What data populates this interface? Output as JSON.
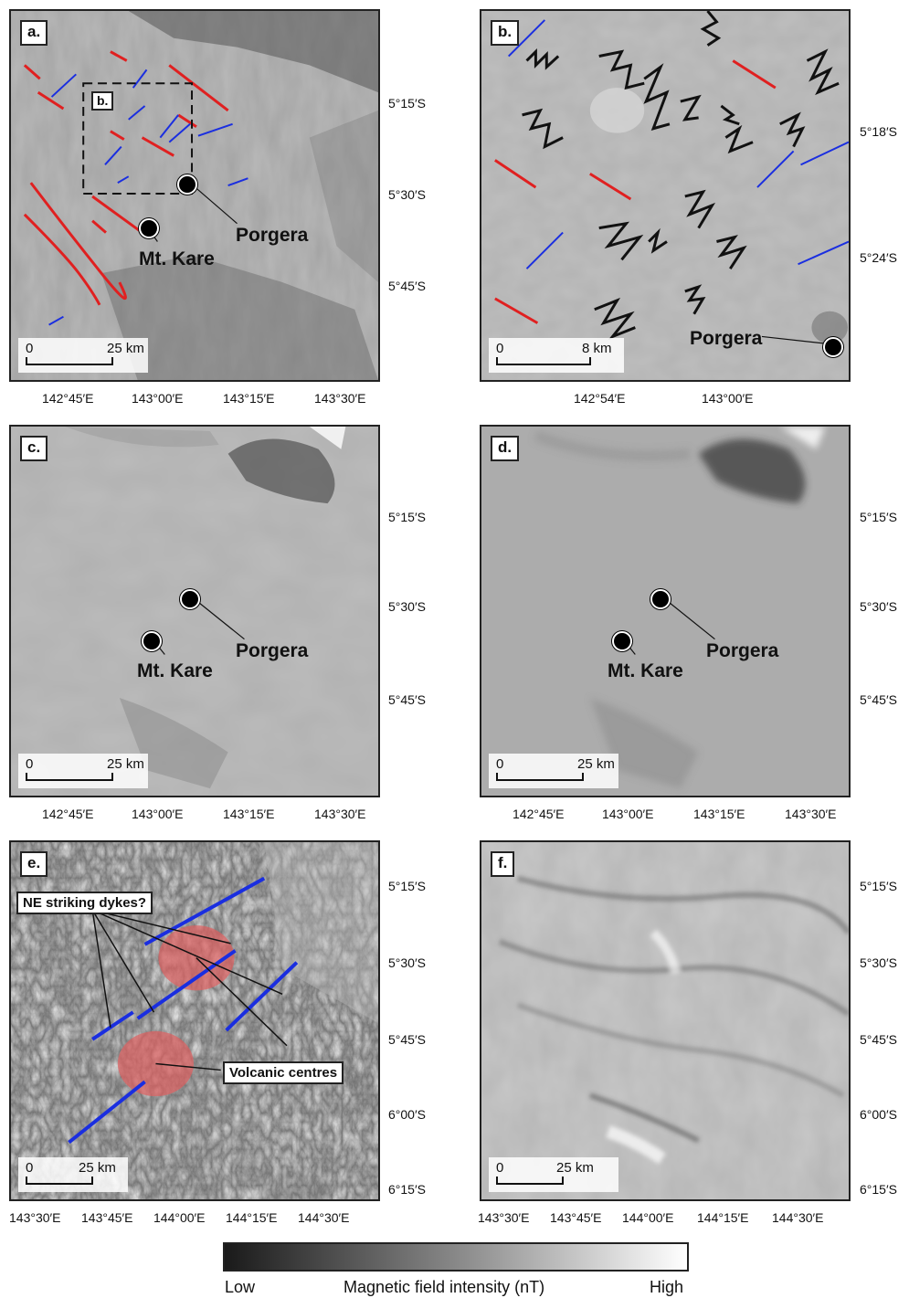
{
  "panels": {
    "a": {
      "label": "a.",
      "inset_label": "b.",
      "scale_zero": "0",
      "scale_text": "25 km",
      "porgera": "Porgera",
      "kare": "Mt. Kare",
      "xticks": [
        "142°45′E",
        "143°00′E",
        "143°15′E",
        "143°30′E"
      ],
      "yticks": [
        "5°15′S",
        "5°30′S",
        "5°45′S"
      ]
    },
    "b": {
      "label": "b.",
      "scale_zero": "0",
      "scale_text": "8 km",
      "porgera": "Porgera",
      "xticks": [
        "142°54′E",
        "143°00′E"
      ],
      "yticks": [
        "5°18′S",
        "5°24′S"
      ]
    },
    "c": {
      "label": "c.",
      "scale_zero": "0",
      "scale_text": "25 km",
      "porgera": "Porgera",
      "kare": "Mt. Kare",
      "xticks": [
        "142°45′E",
        "143°00′E",
        "143°15′E",
        "143°30′E"
      ],
      "yticks": [
        "5°15′S",
        "5°30′S",
        "5°45′S"
      ]
    },
    "d": {
      "label": "d.",
      "scale_zero": "0",
      "scale_text": "25 km",
      "porgera": "Porgera",
      "kare": "Mt. Kare",
      "xticks": [
        "142°45′E",
        "143°00′E",
        "143°15′E",
        "143°30′E"
      ],
      "yticks": [
        "5°15′S",
        "5°30′S",
        "5°45′S"
      ]
    },
    "e": {
      "label": "e.",
      "scale_zero": "0",
      "scale_text": "25 km",
      "dykes": "NE striking dykes?",
      "volcanic": "Volcanic centres",
      "xticks": [
        "143°30′E",
        "143°45′E",
        "144°00′E",
        "144°15′E",
        "144°30′E"
      ],
      "yticks": [
        "5°15′S",
        "5°30′S",
        "5°45′S",
        "6°00′S",
        "6°15′S"
      ]
    },
    "f": {
      "label": "f.",
      "scale_zero": "0",
      "scale_text": "25 km",
      "xticks": [
        "143°30′E",
        "143°45′E",
        "144°00′E",
        "144°15′E",
        "144°30′E"
      ],
      "yticks": [
        "5°15′S",
        "5°30′S",
        "5°45′S",
        "6°00′S",
        "6°15′S"
      ]
    }
  },
  "legend": {
    "low": "Low",
    "title": "Magnetic field intensity (nT)",
    "high": "High"
  },
  "colors": {
    "red_lineament": "#e02020",
    "blue_lineament": "#1a2ee0",
    "volcanic_fill": "#e06060"
  }
}
